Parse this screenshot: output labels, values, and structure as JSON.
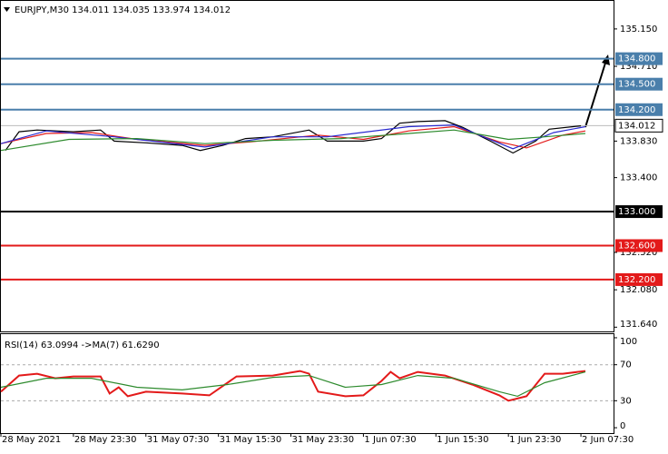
{
  "chart_data": [
    {
      "type": "line",
      "title": "EURJPY,M30  134.011 134.035 133.974 134.012",
      "xlim": [
        0,
        135.2
      ],
      "ylim": [
        131.59,
        135.48
      ],
      "yticks": [
        {
          "value": 135.15,
          "label": "135.150"
        },
        {
          "value": 134.71,
          "label": "134.710"
        },
        {
          "value": 133.83,
          "label": "133.830"
        },
        {
          "value": 133.4,
          "label": "133.400"
        },
        {
          "value": 132.52,
          "label": "132.520"
        },
        {
          "value": 132.08,
          "label": "132.080"
        },
        {
          "value": 131.64,
          "label": "131.640"
        }
      ],
      "levels": [
        {
          "value": 134.8,
          "label": "134.800",
          "color": "#4a7fab"
        },
        {
          "value": 134.5,
          "label": "134.500",
          "color": "#4a7fab"
        },
        {
          "value": 134.2,
          "label": "134.200",
          "color": "#4a7fab"
        },
        {
          "value": 133.0,
          "label": "133.000",
          "color": "#000000"
        },
        {
          "value": 132.6,
          "label": "132.600",
          "color": "#e31a1a"
        },
        {
          "value": 132.2,
          "label": "132.200",
          "color": "#e31a1a"
        }
      ],
      "current": 134.012,
      "series": [
        {
          "color": "#000000",
          "x": [
            1,
            4,
            8,
            16,
            22,
            25,
            32,
            40,
            44,
            49,
            54,
            60,
            68,
            72,
            80,
            84,
            88,
            92,
            98,
            102,
            108,
            113,
            118,
            121,
            128
          ],
          "values": [
            133.72,
            133.94,
            133.96,
            133.94,
            133.96,
            133.83,
            133.81,
            133.78,
            133.72,
            133.78,
            133.86,
            133.88,
            133.96,
            133.83,
            133.83,
            133.86,
            134.04,
            134.06,
            134.07,
            133.99,
            133.83,
            133.69,
            133.83,
            133.97,
            134.01
          ]
        },
        {
          "color": "#e31a1a",
          "x": [
            0,
            10,
            20,
            30,
            45,
            55,
            70,
            80,
            90,
            100,
            110,
            116,
            124,
            129
          ],
          "values": [
            133.8,
            133.92,
            133.93,
            133.85,
            133.78,
            133.82,
            133.9,
            133.85,
            133.95,
            134.0,
            133.82,
            133.75,
            133.9,
            133.95
          ]
        },
        {
          "color": "#2a2ad0",
          "x": [
            0,
            10,
            25,
            45,
            60,
            72,
            90,
            100,
            113,
            122,
            129
          ],
          "values": [
            133.8,
            133.95,
            133.88,
            133.76,
            133.88,
            133.88,
            134.0,
            134.02,
            133.74,
            133.93,
            134.0
          ]
        },
        {
          "color": "#2e8b2e",
          "x": [
            0,
            15,
            30,
            45,
            60,
            75,
            90,
            100,
            112,
            120,
            129
          ],
          "values": [
            133.72,
            133.85,
            133.86,
            133.8,
            133.84,
            133.86,
            133.92,
            133.96,
            133.85,
            133.88,
            133.92
          ]
        }
      ]
    },
    {
      "type": "line",
      "title": "RSI(14) 63.0994  ->MA(7) 61.6290",
      "xlim": [
        0,
        135.2
      ],
      "ylim": [
        -6,
        104
      ],
      "yticks": [
        100,
        70,
        30,
        0
      ],
      "levels": [
        70,
        30
      ],
      "xticks": [
        {
          "value": 0,
          "label": "28 May 2021"
        },
        {
          "value": 16,
          "label": "28 May 23:30"
        },
        {
          "value": 32,
          "label": "31 May 07:30"
        },
        {
          "value": 48,
          "label": "31 May 15:30"
        },
        {
          "value": 64,
          "label": "31 May 23:30"
        },
        {
          "value": 80,
          "label": "1 Jun 07:30"
        },
        {
          "value": 96,
          "label": "1 Jun 15:30"
        },
        {
          "value": 112,
          "label": "1 Jun 23:30"
        },
        {
          "value": 128,
          "label": "2 Jun 07:30"
        }
      ],
      "series": [
        {
          "color": "#e31a1a",
          "x": [
            0,
            4,
            8,
            12,
            16,
            22,
            24,
            26,
            28,
            32,
            40,
            46,
            52,
            60,
            66,
            68,
            70,
            76,
            80,
            84,
            86,
            88,
            92,
            98,
            104,
            110,
            112,
            116,
            120,
            124,
            129
          ],
          "values": [
            40,
            58,
            60,
            55,
            57,
            57,
            38,
            45,
            35,
            40,
            38,
            36,
            57,
            58,
            63,
            60,
            40,
            35,
            36,
            52,
            62,
            55,
            62,
            58,
            48,
            36,
            30,
            35,
            60,
            60,
            63
          ]
        },
        {
          "color": "#2e8b2e",
          "x": [
            0,
            10,
            20,
            30,
            40,
            50,
            60,
            68,
            76,
            84,
            92,
            100,
            110,
            114,
            120,
            129
          ],
          "values": [
            45,
            55,
            55,
            45,
            42,
            48,
            56,
            58,
            45,
            48,
            58,
            55,
            40,
            35,
            50,
            62
          ]
        }
      ]
    }
  ]
}
